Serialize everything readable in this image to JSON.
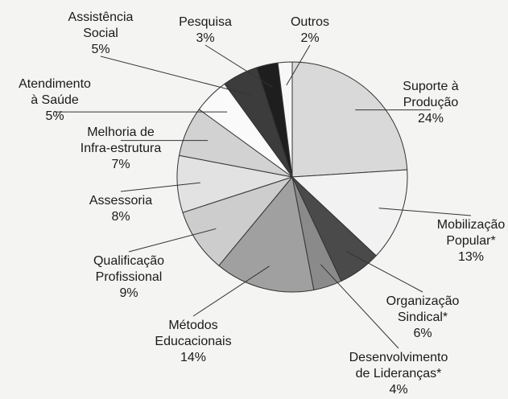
{
  "chart_data": {
    "type": "pie",
    "categories": [
      [
        "Suporte à",
        "Produção"
      ],
      [
        "Mobilização",
        "Popular*"
      ],
      [
        "Organização",
        "Sindical*"
      ],
      [
        "Desenvolvimento",
        "de Lideranças*"
      ],
      [
        "Métodos",
        "Educacionais"
      ],
      [
        "Qualificação",
        "Profissional"
      ],
      [
        "Assessoria"
      ],
      [
        "Melhoria de",
        "Infra-estrutura"
      ],
      [
        "Atendimento",
        "à Saúde"
      ],
      [
        "Assistência",
        "Social"
      ],
      [
        "Pesquisa"
      ],
      [
        "Outros"
      ]
    ],
    "values": [
      24,
      13,
      6,
      4,
      14,
      9,
      8,
      7,
      5,
      5,
      3,
      2
    ],
    "value_labels": [
      "24%",
      "13%",
      "6%",
      "4%",
      "14%",
      "9%",
      "8%",
      "7%",
      "5%",
      "5%",
      "3%",
      "2%"
    ],
    "colors": [
      "#d9d9d9",
      "#f2f2f2",
      "#4a4a4a",
      "#8a8a8a",
      "#a0a0a0",
      "#cdcdcd",
      "#e2e2e2",
      "#d2d2d2",
      "#fafafa",
      "#3c3c3c",
      "#1e1e1e",
      "#f7f7f7"
    ]
  }
}
